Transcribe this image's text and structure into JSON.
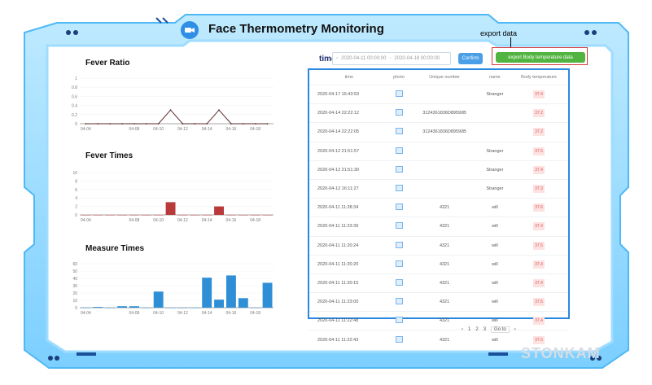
{
  "header": {
    "title": "Face Thermometry Monitoring",
    "export_note": "export data"
  },
  "filter": {
    "time_label": "time",
    "start_value": "2020-04-11 00:00:00",
    "separator": "-",
    "end_value": "2020-04-18 00:00:00",
    "confirm_label": "Confirm",
    "export_label": "export Body temperature data"
  },
  "table": {
    "headers": [
      "time",
      "photo",
      "Unique number",
      "name",
      "Body temperature"
    ],
    "rows": [
      {
        "time": "2020-04-17 16:43:53",
        "unique": "",
        "name": "Stranger",
        "temp": "37.4"
      },
      {
        "time": "2020-04-14 22:22:12",
        "unique": "3124361836D89590B",
        "name": "",
        "temp": "37.2"
      },
      {
        "time": "2020-04-14 22:22:05",
        "unique": "3124361836D89590B",
        "name": "",
        "temp": "37.2"
      },
      {
        "time": "2020-04-12 21:51:57",
        "unique": "",
        "name": "Stranger",
        "temp": "37.5"
      },
      {
        "time": "2020-04-12 21:51:30",
        "unique": "",
        "name": "Stranger",
        "temp": "37.4"
      },
      {
        "time": "2020-04-12 16:11:27",
        "unique": "",
        "name": "Stranger",
        "temp": "37.3"
      },
      {
        "time": "2020-04-11 11:28:34",
        "unique": "4321",
        "name": "will",
        "temp": "37.6"
      },
      {
        "time": "2020-04-11 11:23:39",
        "unique": "4321",
        "name": "will",
        "temp": "37.4"
      },
      {
        "time": "2020-04-11 11:20:24",
        "unique": "4321",
        "name": "will",
        "temp": "37.5"
      },
      {
        "time": "2020-04-11 11:20:20",
        "unique": "4321",
        "name": "will",
        "temp": "37.4"
      },
      {
        "time": "2020-04-11 11:20:15",
        "unique": "4321",
        "name": "will",
        "temp": "37.4"
      },
      {
        "time": "2020-04-11 11:23:00",
        "unique": "4321",
        "name": "will",
        "temp": "37.5"
      },
      {
        "time": "2020-04-11 11:22:48",
        "unique": "4321",
        "name": "will",
        "temp": "37.4"
      },
      {
        "time": "2020-04-11 11:22:43",
        "unique": "4321",
        "name": "will",
        "temp": "37.5"
      }
    ]
  },
  "pager": {
    "prev": "‹",
    "page1": "1",
    "page2": "2",
    "page3": "3",
    "goto": "Go to",
    "next": "›"
  },
  "watermark": "STONKAM",
  "colors": {
    "frame_blue": "#7ad0ff",
    "accent_blue": "#2a88e0",
    "bar_red": "#b93a3a",
    "bar_blue": "#2f8fd6",
    "export_green": "#52b440",
    "highlight_red": "#d43a3a"
  },
  "chart_data": [
    {
      "type": "line",
      "title": "Fever Ratio",
      "x": [
        "04-04",
        "04-05",
        "04-06",
        "04-07",
        "04-08",
        "04-09",
        "04-10",
        "04-11",
        "04-12",
        "04-13",
        "04-14",
        "04-15",
        "04-16",
        "04-17",
        "04-18",
        "04-19"
      ],
      "x_ticks": [
        "04-04",
        "04-08",
        "04-10",
        "04-12",
        "04-14",
        "04-16",
        "04-18"
      ],
      "values": [
        0,
        0,
        0,
        0,
        0,
        0,
        0,
        0.3,
        0,
        0,
        0,
        0.3,
        0,
        0,
        0,
        0
      ],
      "yticks": [
        "1",
        "0.8",
        "0.6",
        "0.4",
        "0.2",
        "0"
      ],
      "ylim": [
        0,
        1
      ]
    },
    {
      "type": "bar",
      "title": "Fever Times",
      "x": [
        "04-04",
        "04-05",
        "04-06",
        "04-07",
        "04-08",
        "04-09",
        "04-10",
        "04-11",
        "04-12",
        "04-13",
        "04-14",
        "04-15",
        "04-16",
        "04-17",
        "04-18",
        "04-19"
      ],
      "x_ticks": [
        "04-04",
        "04-08",
        "04-10",
        "04-12",
        "04-14",
        "04-16",
        "04-18"
      ],
      "values": [
        0,
        0,
        0,
        0,
        0,
        0,
        0,
        3,
        0,
        0,
        0,
        2,
        0,
        0,
        0,
        0
      ],
      "yticks": [
        "10",
        "8",
        "6",
        "4",
        "2",
        "0"
      ],
      "ylim": [
        0,
        10
      ]
    },
    {
      "type": "bar",
      "title": "Measure Times",
      "x": [
        "04-04",
        "04-05",
        "04-06",
        "04-07",
        "04-08",
        "04-09",
        "04-10",
        "04-11",
        "04-12",
        "04-13",
        "04-14",
        "04-15",
        "04-16",
        "04-17",
        "04-18",
        "04-19"
      ],
      "x_ticks": [
        "04-04",
        "04-08",
        "04-10",
        "04-12",
        "04-14",
        "04-16",
        "04-18"
      ],
      "values": [
        0,
        1,
        0,
        2,
        2,
        0,
        22,
        0,
        0,
        0,
        41,
        11,
        44,
        13,
        0,
        34
      ],
      "yticks": [
        "60",
        "50",
        "40",
        "30",
        "20",
        "10",
        "0"
      ],
      "ylim": [
        0,
        60
      ]
    }
  ]
}
